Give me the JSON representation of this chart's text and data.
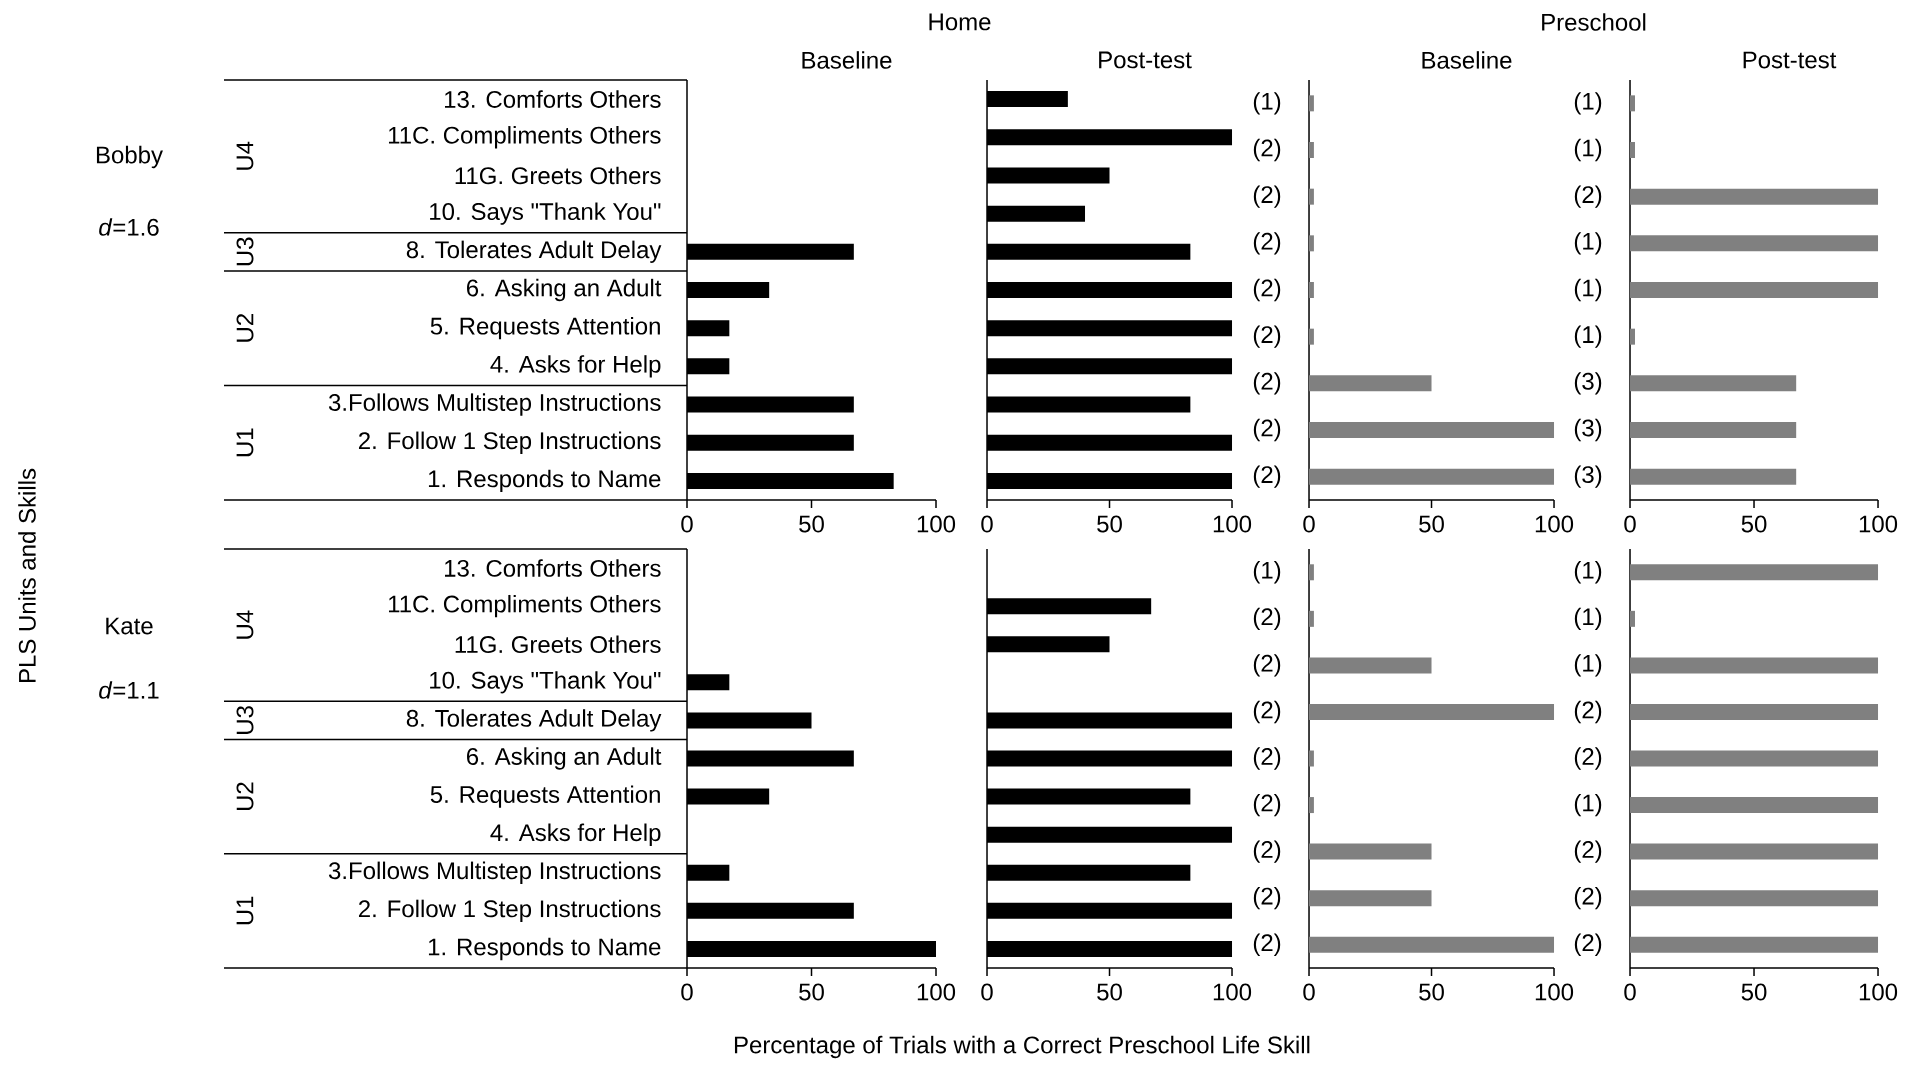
{
  "chart_data": [
    {
      "type": "bar",
      "orientation": "horizontal",
      "title": "Home",
      "subtitle": "Baseline",
      "ylabel": "PLS Units and Skills",
      "categories": [
        "13. Comforts Others",
        "11C. Compliments Others",
        "11G. Greets Others",
        "10. Says \"Thank You\"",
        "8. Tolerates Adult Delay",
        "6. Asking an Adult",
        "5. Requests Attention",
        "4. Asks for Help",
        "3.Follows Multistep Instructions",
        "2. Follow 1 Step Instructions",
        "1. Responds to Name"
      ],
      "values": [
        null,
        null,
        null,
        null,
        67,
        33,
        17,
        17,
        67,
        67,
        83
      ],
      "color": "#000000",
      "xlim": [
        0,
        100
      ],
      "xticks": [
        0,
        50,
        100
      ],
      "annotations": [
        "Bobby",
        "*d*=1.6",
        "U4",
        "U3",
        "U2",
        "U1"
      ]
    },
    {
      "type": "bar",
      "orientation": "horizontal",
      "subtitle": "Post-test",
      "categories": [
        null,
        null,
        null,
        null,
        null,
        null,
        null,
        null,
        null,
        null,
        null
      ],
      "values": [
        33,
        100,
        50,
        40,
        83,
        100,
        100,
        100,
        83,
        100,
        100
      ],
      "color": "#000000",
      "xlim": [
        0,
        100
      ],
      "xticks": [
        0,
        50,
        100
      ],
      "tick_labels": "x"
    },
    {
      "type": "bar",
      "orientation": "horizontal",
      "title": "Preschool",
      "subtitle": "Baseline",
      "categories": [
        null,
        null,
        null,
        null,
        null,
        null,
        null,
        null,
        null
      ],
      "values": [
        2,
        2,
        2,
        2,
        2,
        2,
        50,
        100,
        100
      ],
      "color": "#808080",
      "xlim": [
        0,
        100
      ],
      "xticks": [
        0,
        50,
        100
      ],
      "tick_labels": "x",
      "annotations": [
        "(1)",
        "(2)",
        "(2)",
        "(2)",
        "(2)",
        "(2)",
        "(2)",
        "(2)",
        "(2)"
      ]
    },
    {
      "type": "bar",
      "orientation": "horizontal",
      "subtitle": "Post-test",
      "categories": [
        null,
        null,
        null,
        null,
        null,
        null,
        null,
        null,
        null
      ],
      "values": [
        2,
        2,
        100,
        100,
        100,
        2,
        67,
        67,
        67
      ],
      "color": "#808080",
      "xlim": [
        0,
        100
      ],
      "xticks": [
        0,
        50,
        100
      ],
      "tick_labels": "x",
      "annotations": [
        "(1)",
        "(1)",
        "(2)",
        "(1)",
        "(1)",
        "(1)",
        "(3)",
        "(3)",
        "(3)"
      ]
    },
    {
      "type": "bar",
      "orientation": "horizontal",
      "xlabel": "Percentage of Trials with a Correct Preschool Life Skill",
      "categories": [
        "13. Comforts Others",
        "11C. Compliments Others",
        "11G. Greets Others",
        "10. Says \"Thank You\"",
        "8. Tolerates Adult Delay",
        "6. Asking an Adult",
        "5. Requests Attention",
        "4. Asks for Help",
        "3.Follows Multistep Instructions",
        "2. Follow 1 Step Instructions",
        "1. Responds to Name"
      ],
      "values": [
        null,
        null,
        null,
        17,
        50,
        67,
        33,
        null,
        17,
        67,
        100
      ],
      "color": "#000000",
      "xlim": [
        0,
        100
      ],
      "xticks": [
        0,
        50,
        100
      ],
      "annotations": [
        "Kate",
        "*d*=1.1",
        "U4",
        "U3",
        "U2",
        "U1"
      ]
    },
    {
      "type": "bar",
      "orientation": "horizontal",
      "categories": [
        null,
        null,
        null,
        null,
        null,
        null,
        null,
        null,
        null,
        null,
        null
      ],
      "values": [
        null,
        67,
        50,
        null,
        100,
        100,
        83,
        100,
        83,
        100,
        100
      ],
      "color": "#000000",
      "xlim": [
        0,
        100
      ],
      "xticks": [
        0,
        50,
        100
      ],
      "tick_labels": "x"
    },
    {
      "type": "bar",
      "orientation": "horizontal",
      "categories": [
        null,
        null,
        null,
        null,
        null,
        null,
        null,
        null,
        null
      ],
      "values": [
        2,
        2,
        50,
        100,
        2,
        2,
        50,
        50,
        100
      ],
      "color": "#808080",
      "xlim": [
        0,
        100
      ],
      "xticks": [
        0,
        50,
        100
      ],
      "tick_labels": "x",
      "annotations": [
        "(1)",
        "(2)",
        "(2)",
        "(2)",
        "(2)",
        "(2)",
        "(2)",
        "(2)",
        "(2)"
      ]
    },
    {
      "type": "bar",
      "orientation": "horizontal",
      "categories": [
        null,
        null,
        null,
        null,
        null,
        null,
        null,
        null,
        null
      ],
      "values": [
        100,
        2,
        100,
        100,
        100,
        100,
        100,
        100,
        100
      ],
      "color": "#808080",
      "xlim": [
        0,
        100
      ],
      "xticks": [
        0,
        50,
        100
      ],
      "tick_labels": "x",
      "annotations": [
        "(1)",
        "(1)",
        "(1)",
        "(2)",
        "(2)",
        "(1)",
        "(2)",
        "(2)",
        "(2)"
      ]
    }
  ]
}
